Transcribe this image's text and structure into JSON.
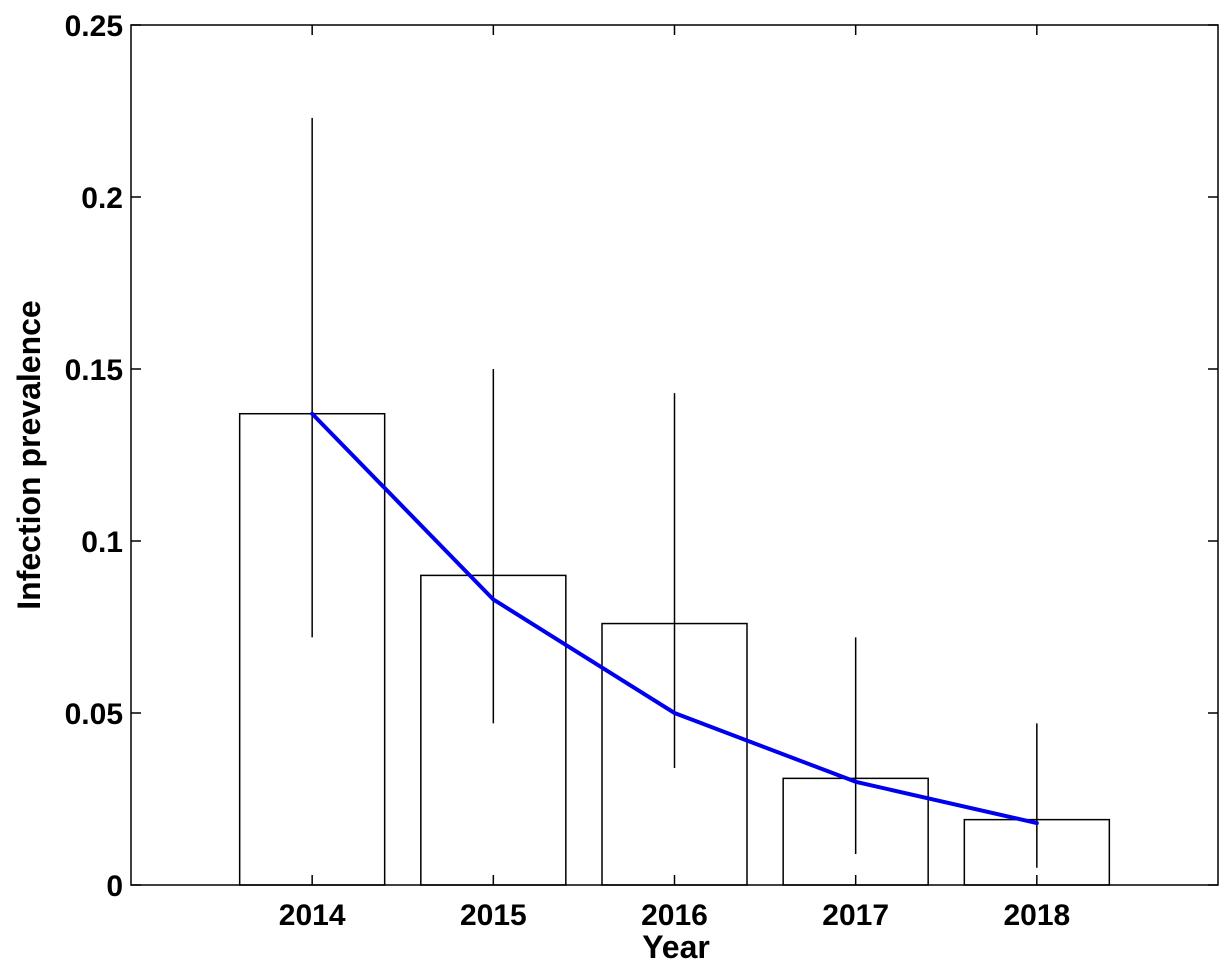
{
  "chart_data": {
    "type": "bar",
    "categories": [
      "2014",
      "2015",
      "2016",
      "2017",
      "2018"
    ],
    "series": [
      {
        "kind": "bar",
        "values": [
          0.137,
          0.09,
          0.076,
          0.031,
          0.019
        ],
        "error_low": [
          0.072,
          0.047,
          0.034,
          0.009,
          0.005
        ],
        "error_high": [
          0.223,
          0.15,
          0.143,
          0.072,
          0.047
        ],
        "color": "#000000"
      },
      {
        "kind": "line",
        "values": [
          0.137,
          0.083,
          0.05,
          0.03,
          0.018
        ],
        "color": "#0000ee"
      }
    ],
    "title": "",
    "xlabel": "Year",
    "ylabel": "Infection prevalence",
    "ylim": [
      0,
      0.25
    ],
    "yticks": [
      0,
      0.05,
      0.1,
      0.15,
      0.2,
      0.25
    ],
    "ytick_labels": [
      "0",
      "0.05",
      "0.1",
      "0.15",
      "0.2",
      "0.25"
    ],
    "grid": false,
    "legend": "none"
  }
}
